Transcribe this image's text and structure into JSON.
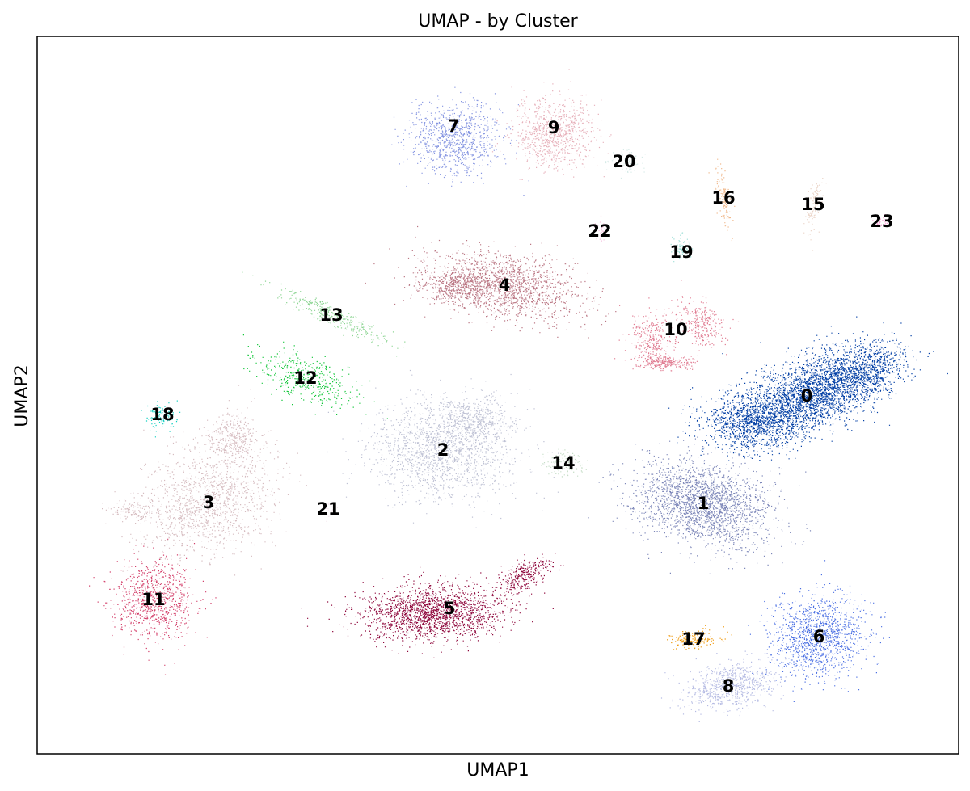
{
  "chart_data": {
    "type": "scatter",
    "title": "UMAP - by Cluster",
    "xlabel": "UMAP1",
    "ylabel": "UMAP2",
    "xticks": [],
    "yticks": [],
    "grid": false,
    "legend": "on data",
    "clusters": [
      {
        "name": "0",
        "color": "#023fa5",
        "center": [
          998,
          490
        ]
      },
      {
        "name": "1",
        "color": "#7d87b9",
        "center": [
          870,
          623
        ]
      },
      {
        "name": "2",
        "color": "#bec1d4",
        "center": [
          548,
          557
        ]
      },
      {
        "name": "3",
        "color": "#d6bcc0",
        "center": [
          258,
          622
        ]
      },
      {
        "name": "4",
        "color": "#bb7784",
        "center": [
          624,
          353
        ]
      },
      {
        "name": "5",
        "color": "#8e063b",
        "center": [
          556,
          753
        ]
      },
      {
        "name": "6",
        "color": "#4a6fe3",
        "center": [
          1013,
          788
        ]
      },
      {
        "name": "7",
        "color": "#8595e1",
        "center": [
          561,
          156
        ]
      },
      {
        "name": "8",
        "color": "#b5bbe3",
        "center": [
          901,
          849
        ]
      },
      {
        "name": "9",
        "color": "#e6afb9",
        "center": [
          685,
          158
        ]
      },
      {
        "name": "10",
        "color": "#e07b91",
        "center": [
          836,
          408
        ]
      },
      {
        "name": "11",
        "color": "#d33f6a",
        "center": [
          190,
          742
        ]
      },
      {
        "name": "12",
        "color": "#11c638",
        "center": [
          378,
          468
        ]
      },
      {
        "name": "13",
        "color": "#8dd593",
        "center": [
          410,
          390
        ]
      },
      {
        "name": "14",
        "color": "#c6dec7",
        "center": [
          697,
          573
        ]
      },
      {
        "name": "15",
        "color": "#ead3c6",
        "center": [
          1006,
          253
        ]
      },
      {
        "name": "16",
        "color": "#f0b98d",
        "center": [
          895,
          245
        ]
      },
      {
        "name": "17",
        "color": "#ef9708",
        "center": [
          858,
          791
        ]
      },
      {
        "name": "18",
        "color": "#0fcfc0",
        "center": [
          201,
          513
        ]
      },
      {
        "name": "19",
        "color": "#9cded6",
        "center": [
          843,
          312
        ]
      },
      {
        "name": "20",
        "color": "#d5eae7",
        "center": [
          772,
          200
        ]
      },
      {
        "name": "21",
        "color": "#f3e1eb",
        "center": [
          406,
          630
        ]
      },
      {
        "name": "22",
        "color": "#f6c4e1",
        "center": [
          742,
          286
        ]
      },
      {
        "name": "23",
        "color": "#f79cd4",
        "center": [
          1091,
          274
        ]
      }
    ]
  }
}
